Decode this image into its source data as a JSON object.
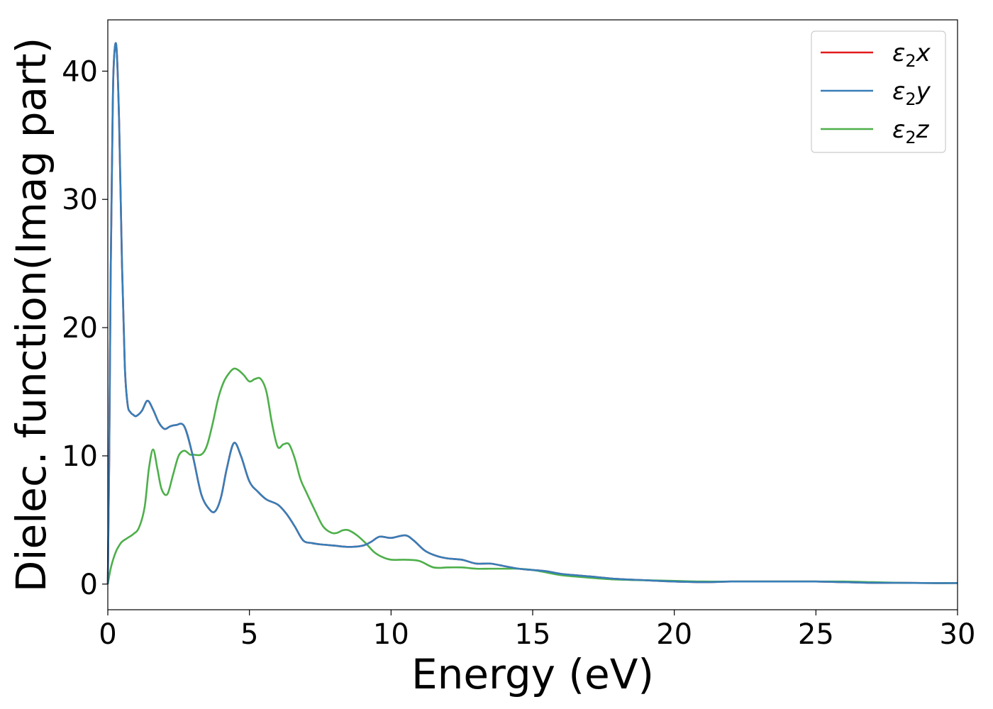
{
  "chart_data": {
    "type": "line",
    "xlabel": "Energy (eV)",
    "ylabel": "Dielec. function(Imag part)",
    "xlim": [
      0,
      30
    ],
    "ylim": [
      -2,
      44
    ],
    "xticks": [
      0,
      5,
      10,
      15,
      20,
      25,
      30
    ],
    "yticks": [
      0,
      10,
      20,
      30,
      40
    ],
    "grid": false,
    "legend_position": "top-right",
    "series": [
      {
        "name": "ε₂x",
        "legend": {
          "symbol": "ε",
          "sub": "2",
          "var": "x"
        },
        "color": "#e41a1c",
        "x": [
          0,
          0.05,
          0.1,
          0.15,
          0.2,
          0.3,
          0.4,
          0.5,
          0.6,
          0.7,
          0.8,
          0.9,
          1.0,
          1.2,
          1.4,
          1.6,
          1.8,
          2.0,
          2.2,
          2.4,
          2.7,
          3.0,
          3.3,
          3.6,
          3.8,
          4.0,
          4.2,
          4.45,
          4.7,
          5.0,
          5.3,
          5.6,
          6.0,
          6.3,
          6.6,
          6.9,
          7.2,
          7.5,
          8.0,
          8.5,
          9.0,
          9.3,
          9.6,
          10.0,
          10.5,
          10.8,
          11.2,
          11.6,
          12.0,
          12.5,
          13.0,
          13.5,
          14.0,
          14.5,
          15.0,
          15.5,
          16.0,
          17.0,
          18.0,
          19.0,
          20.0,
          21.0,
          22.0,
          23.0,
          24.0,
          25.0,
          26.0,
          27.0,
          28.0,
          29.0,
          30.0
        ],
        "values": [
          0,
          10,
          24,
          33,
          40,
          42,
          36,
          25,
          17,
          14,
          13.4,
          13.2,
          13.1,
          13.5,
          14.3,
          13.6,
          12.6,
          12.1,
          12.3,
          12.4,
          12.3,
          10.0,
          7.0,
          5.8,
          5.7,
          6.8,
          9.0,
          11.0,
          10.0,
          8.0,
          7.2,
          6.6,
          6.2,
          5.5,
          4.5,
          3.4,
          3.2,
          3.1,
          3.0,
          2.9,
          3.0,
          3.3,
          3.7,
          3.6,
          3.8,
          3.4,
          2.6,
          2.2,
          2.0,
          1.9,
          1.6,
          1.6,
          1.4,
          1.2,
          1.1,
          1.0,
          0.8,
          0.6,
          0.4,
          0.3,
          0.2,
          0.15,
          0.2,
          0.2,
          0.2,
          0.2,
          0.15,
          0.1,
          0.1,
          0.08,
          0.08
        ]
      },
      {
        "name": "ε₂y",
        "legend": {
          "symbol": "ε",
          "sub": "2",
          "var": "y"
        },
        "color": "#377eb8",
        "x": [
          0,
          0.05,
          0.1,
          0.15,
          0.2,
          0.3,
          0.4,
          0.5,
          0.6,
          0.7,
          0.8,
          0.9,
          1.0,
          1.2,
          1.4,
          1.6,
          1.8,
          2.0,
          2.2,
          2.4,
          2.7,
          3.0,
          3.3,
          3.6,
          3.8,
          4.0,
          4.2,
          4.45,
          4.7,
          5.0,
          5.3,
          5.6,
          6.0,
          6.3,
          6.6,
          6.9,
          7.2,
          7.5,
          8.0,
          8.5,
          9.0,
          9.3,
          9.6,
          10.0,
          10.5,
          10.8,
          11.2,
          11.6,
          12.0,
          12.5,
          13.0,
          13.5,
          14.0,
          14.5,
          15.0,
          15.5,
          16.0,
          17.0,
          18.0,
          19.0,
          20.0,
          21.0,
          22.0,
          23.0,
          24.0,
          25.0,
          26.0,
          27.0,
          28.0,
          29.0,
          30.0
        ],
        "values": [
          0,
          10,
          24,
          33,
          40,
          42,
          36,
          25,
          17,
          14,
          13.4,
          13.2,
          13.1,
          13.5,
          14.3,
          13.6,
          12.6,
          12.1,
          12.3,
          12.4,
          12.3,
          10.0,
          7.0,
          5.8,
          5.7,
          6.8,
          9.0,
          11.0,
          10.0,
          8.0,
          7.2,
          6.6,
          6.2,
          5.5,
          4.5,
          3.4,
          3.2,
          3.1,
          3.0,
          2.9,
          3.0,
          3.3,
          3.7,
          3.6,
          3.8,
          3.4,
          2.6,
          2.2,
          2.0,
          1.9,
          1.6,
          1.6,
          1.4,
          1.2,
          1.1,
          1.0,
          0.8,
          0.6,
          0.4,
          0.3,
          0.2,
          0.15,
          0.2,
          0.2,
          0.2,
          0.2,
          0.15,
          0.1,
          0.1,
          0.08,
          0.08
        ]
      },
      {
        "name": "ε₂z",
        "legend": {
          "symbol": "ε",
          "sub": "2",
          "var": "z"
        },
        "color": "#4daf4a",
        "x": [
          0,
          0.1,
          0.2,
          0.3,
          0.4,
          0.5,
          0.7,
          0.9,
          1.1,
          1.3,
          1.45,
          1.6,
          1.75,
          1.9,
          2.1,
          2.3,
          2.5,
          2.7,
          2.9,
          3.0,
          3.3,
          3.5,
          3.7,
          3.9,
          4.1,
          4.3,
          4.45,
          4.6,
          4.8,
          5.0,
          5.2,
          5.4,
          5.6,
          5.8,
          6.0,
          6.2,
          6.4,
          6.6,
          6.8,
          7.0,
          7.3,
          7.6,
          7.9,
          8.1,
          8.3,
          8.5,
          8.8,
          9.1,
          9.4,
          9.7,
          10.0,
          10.5,
          11.0,
          11.5,
          12.0,
          12.5,
          13.0,
          13.5,
          14.0,
          14.5,
          15.0,
          15.5,
          16.0,
          17.0,
          18.0,
          19.0,
          20.0,
          21.0,
          22.0,
          23.0,
          24.0,
          25.0,
          26.0,
          27.0,
          28.0,
          29.0,
          30.0
        ],
        "values": [
          0,
          1.2,
          2.0,
          2.6,
          3.0,
          3.3,
          3.6,
          3.9,
          4.4,
          6.0,
          9.0,
          10.5,
          9.0,
          7.4,
          7.0,
          8.5,
          10.0,
          10.4,
          10.1,
          10.1,
          10.1,
          10.8,
          12.5,
          14.5,
          15.8,
          16.5,
          16.8,
          16.7,
          16.3,
          15.8,
          16.0,
          16.0,
          15.0,
          12.5,
          10.7,
          10.9,
          10.9,
          9.8,
          8.2,
          7.2,
          5.8,
          4.5,
          4.0,
          4.0,
          4.2,
          4.2,
          3.8,
          3.2,
          2.5,
          2.1,
          1.9,
          1.9,
          1.8,
          1.3,
          1.3,
          1.3,
          1.2,
          1.2,
          1.2,
          1.2,
          1.1,
          0.9,
          0.7,
          0.5,
          0.35,
          0.3,
          0.25,
          0.2,
          0.2,
          0.2,
          0.2,
          0.2,
          0.2,
          0.15,
          0.1,
          0.08,
          0.08
        ]
      }
    ]
  }
}
